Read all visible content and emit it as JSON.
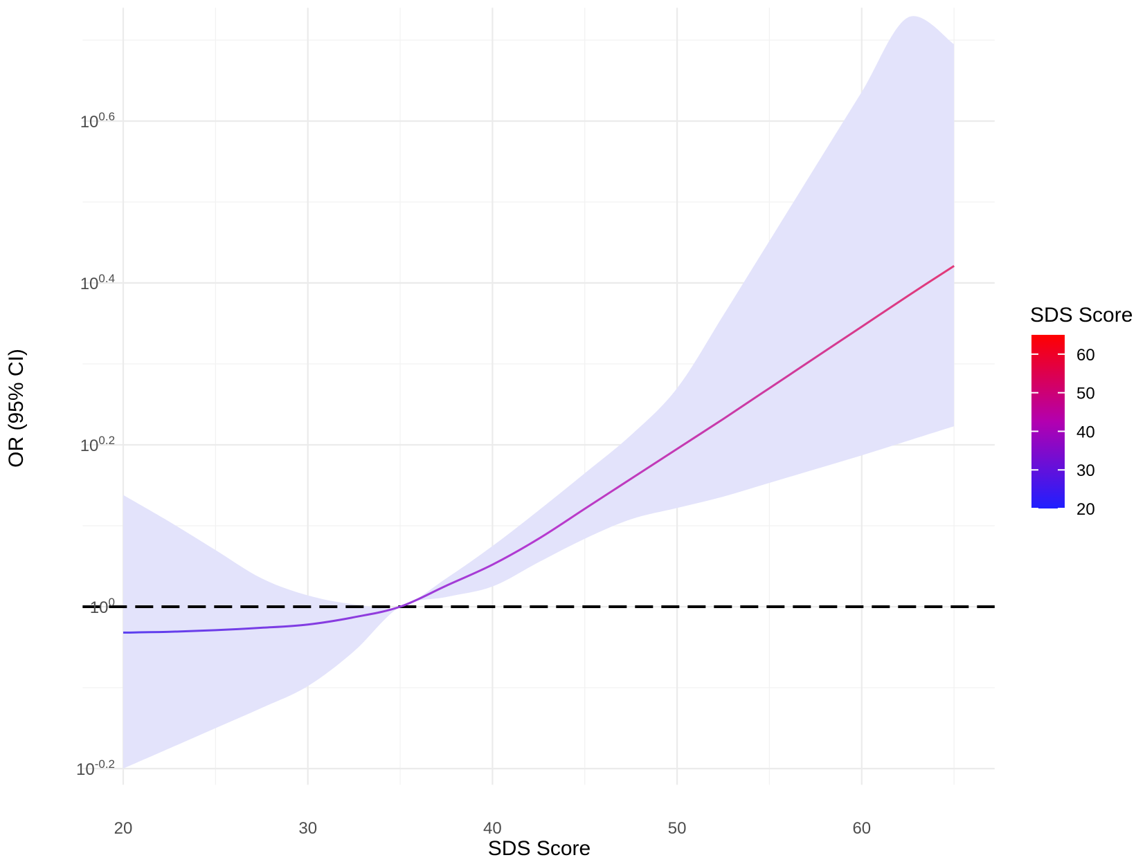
{
  "chart_data": {
    "type": "line",
    "xlabel": "SDS Score",
    "ylabel": "OR (95% CI)",
    "xlim": [
      17.8,
      67.2
    ],
    "ylim": [
      -0.22,
      0.74
    ],
    "y_scale": "log10",
    "x_ticks": [
      20,
      30,
      40,
      50,
      60
    ],
    "y_ticks": [
      {
        "value": -0.2,
        "base": "10",
        "exp": "-0.2"
      },
      {
        "value": 0,
        "base": "10",
        "exp": "0"
      },
      {
        "value": 0.2,
        "base": "10",
        "exp": "0.2"
      },
      {
        "value": 0.4,
        "base": "10",
        "exp": "0.4"
      },
      {
        "value": 0.6,
        "base": "10",
        "exp": "0.6"
      }
    ],
    "reference_line": {
      "y": 0,
      "style": "dashed",
      "color": "#000000"
    },
    "band_color": "#e3e3fb",
    "grid": true,
    "series": [
      {
        "x": [
          20,
          22.5,
          25,
          27.5,
          30,
          32.5,
          35,
          37.5,
          40,
          42.5,
          45,
          47.5,
          50,
          52.5,
          55,
          57.5,
          60,
          62.5,
          65
        ],
        "y": [
          -0.032,
          -0.031,
          -0.029,
          -0.026,
          -0.022,
          -0.013,
          0.0,
          0.026,
          0.052,
          0.084,
          0.121,
          0.158,
          0.195,
          0.232,
          0.27,
          0.308,
          0.346,
          0.384,
          0.421
        ],
        "lower": [
          -0.2,
          -0.175,
          -0.15,
          -0.125,
          -0.098,
          -0.055,
          0.0,
          0.012,
          0.025,
          0.055,
          0.084,
          0.108,
          0.122,
          0.136,
          0.153,
          0.17,
          0.187,
          0.205,
          0.223
        ],
        "upper": [
          0.138,
          0.105,
          0.07,
          0.035,
          0.014,
          0.003,
          0.0,
          0.035,
          0.075,
          0.119,
          0.165,
          0.212,
          0.27,
          0.36,
          0.452,
          0.544,
          0.636,
          0.728,
          0.695
        ]
      }
    ],
    "colorbar": {
      "title": "SDS Score",
      "ticks": [
        20,
        30,
        40,
        50,
        60
      ],
      "range": [
        20,
        65
      ],
      "low_color": "#1f1fff",
      "high_color": "#ff0000"
    }
  }
}
